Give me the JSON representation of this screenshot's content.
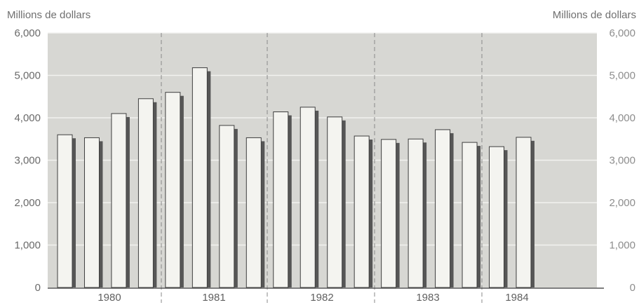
{
  "chart_data": {
    "type": "bar",
    "ylabel_left": "Millions de dollars",
    "ylabel_right": "Millions de dollars",
    "ylim": [
      0,
      6000
    ],
    "yticks": [
      0,
      1000,
      2000,
      3000,
      4000,
      5000,
      6000
    ],
    "ytick_labels": [
      "0",
      "1,000",
      "2,000",
      "3,000",
      "4,000",
      "5,000",
      "6,000"
    ],
    "years": [
      "1980",
      "1981",
      "1982",
      "1983",
      "1984"
    ],
    "bar_year_index": [
      0,
      0,
      0,
      0,
      1,
      1,
      1,
      1,
      2,
      2,
      2,
      2,
      3,
      3,
      3,
      3,
      4,
      4
    ],
    "values": [
      3600,
      3530,
      4100,
      4450,
      4600,
      5180,
      3820,
      3530,
      4140,
      4250,
      4020,
      3570,
      3490,
      3500,
      3720,
      3420,
      3320,
      3540
    ],
    "grid": true,
    "colors": {
      "plot_bg": "#d7d7d3",
      "grid": "#f2f2f0",
      "bar_fill": "#f4f4f0",
      "bar_shadow": "#565656",
      "bar_edge": "#3e3e3e",
      "divider": "#8a8a8a",
      "axis": "#555555"
    }
  }
}
